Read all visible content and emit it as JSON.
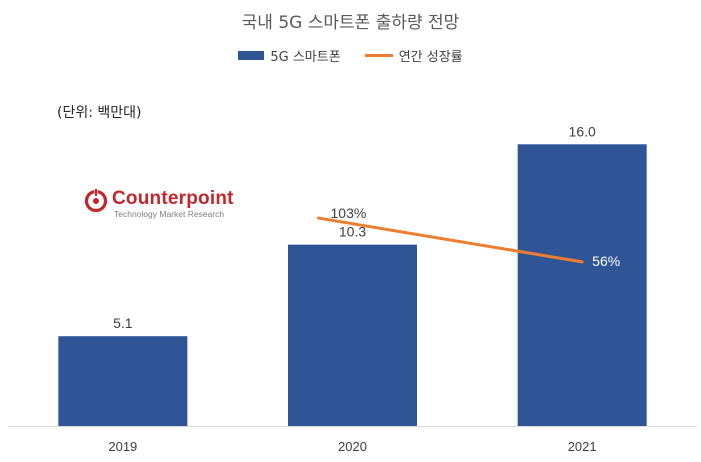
{
  "chart_data": {
    "type": "bar",
    "title": "국내 5G 스마트폰 출하량 전망",
    "unit_note": "(단위: 백만대)",
    "categories": [
      "2019",
      "2020",
      "2021"
    ],
    "series": [
      {
        "name": "5G 스마트폰",
        "type": "bar",
        "values": [
          5.1,
          10.3,
          16.0
        ],
        "labels": [
          "5.1",
          "10.3",
          "16.0"
        ],
        "color": "#2f5597"
      },
      {
        "name": "연간 성장률",
        "type": "line",
        "values": [
          null,
          103,
          56
        ],
        "labels": [
          null,
          "103%",
          "56%"
        ],
        "color": "#ed7d31"
      }
    ],
    "ylim": [
      0,
      18.8
    ],
    "y2lim": [
      -120,
      235
    ],
    "grid": false,
    "legend": "top-center"
  },
  "logo": {
    "name": "Counterpoint",
    "tagline": "Technology Market Research",
    "color": "#c1272d"
  }
}
